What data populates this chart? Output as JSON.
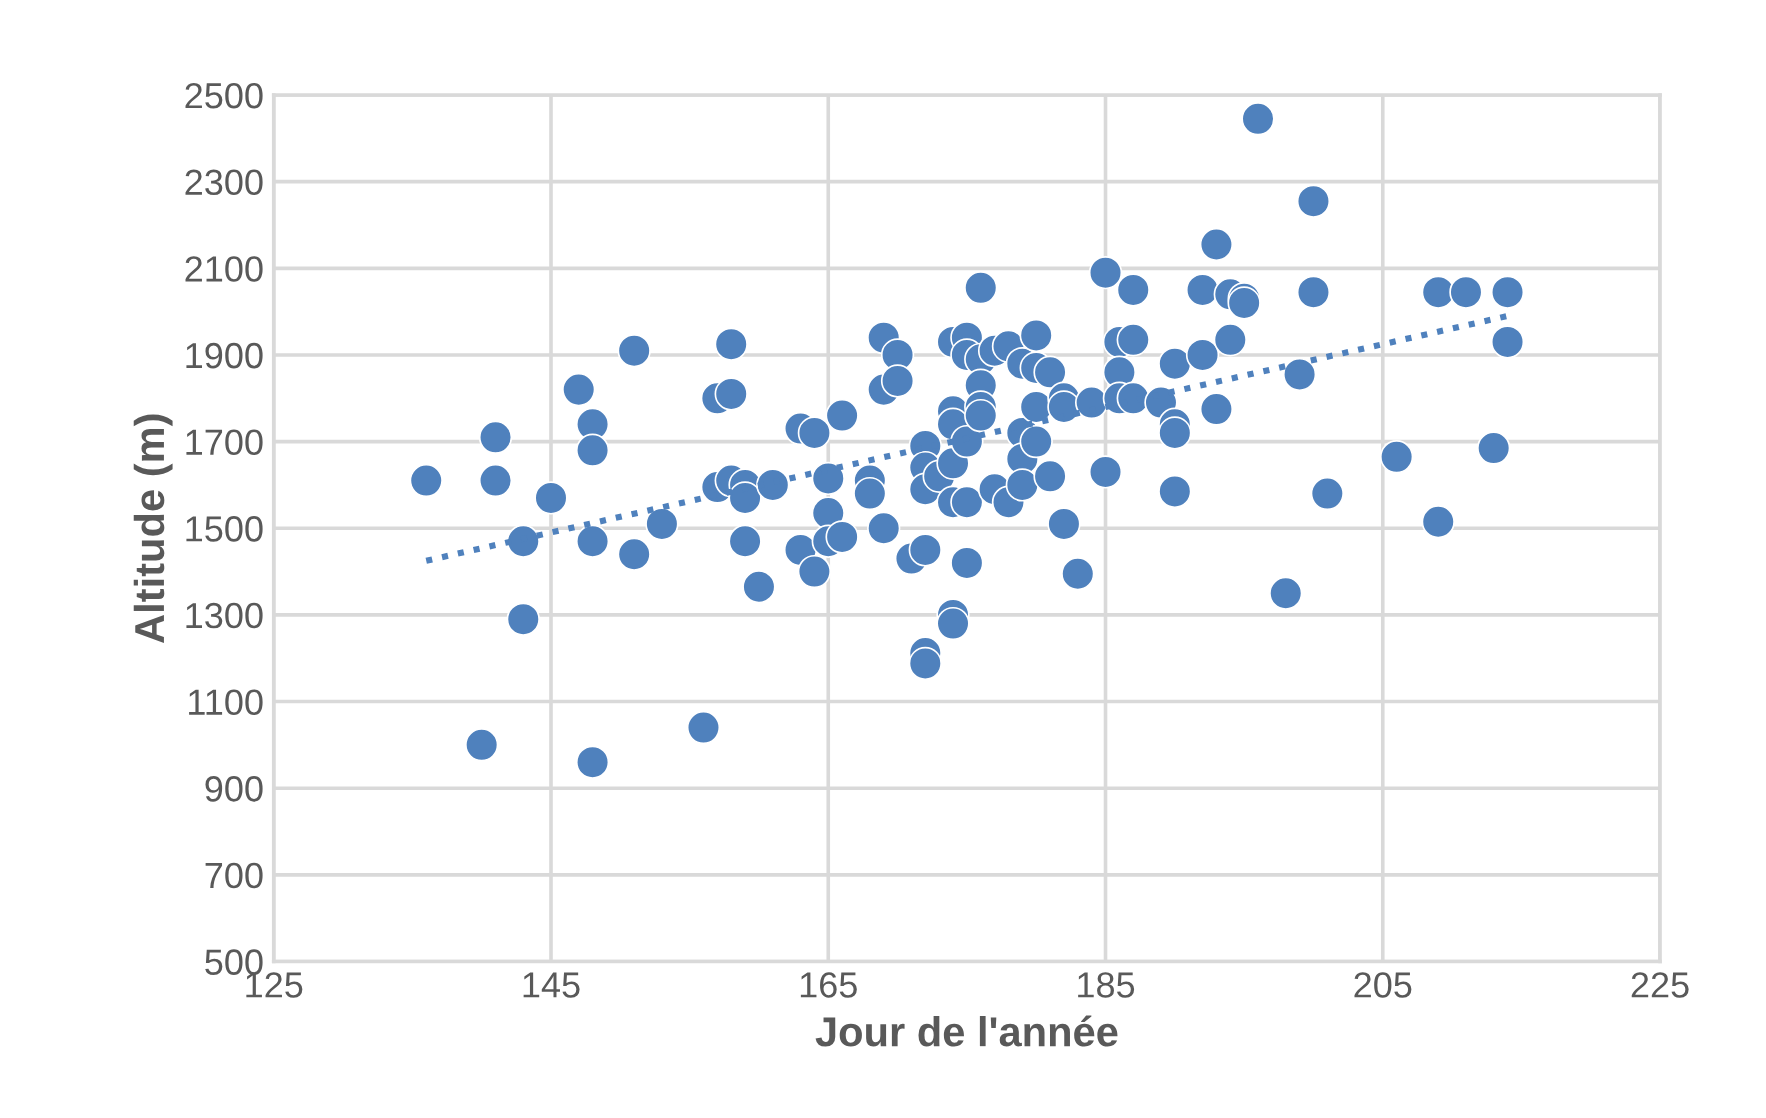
{
  "chart_data": {
    "type": "scatter",
    "xlabel": "Jour de l'année",
    "ylabel": "Altitude (m)",
    "xlim": [
      125,
      225
    ],
    "xticks": [
      125,
      145,
      165,
      185,
      205,
      225
    ],
    "ylim": [
      500,
      2500
    ],
    "yticks": [
      500,
      700,
      900,
      1100,
      1300,
      1500,
      1700,
      1900,
      2100,
      2300,
      2500
    ],
    "grid": true,
    "legend": false,
    "marker": "circle",
    "series": [
      {
        "color": "#4f81bd",
        "x": [
          136,
          140,
          141,
          141,
          143,
          143,
          145,
          147,
          148,
          148,
          148,
          148,
          151,
          151,
          153,
          156,
          157,
          157,
          158,
          158,
          158,
          159,
          159,
          159,
          160,
          161,
          163,
          163,
          164,
          164,
          165,
          165,
          165,
          166,
          166,
          168,
          168,
          169,
          169,
          169,
          170,
          170,
          171,
          172,
          172,
          172,
          172,
          172,
          172,
          173,
          174,
          174,
          174,
          174,
          174,
          174,
          174,
          175,
          175,
          175,
          175,
          175,
          176,
          176,
          176,
          176,
          176,
          177,
          177,
          178,
          178,
          179,
          179,
          179,
          179,
          180,
          180,
          180,
          180,
          181,
          181,
          182,
          182,
          182,
          183,
          184,
          185,
          185,
          186,
          186,
          186,
          187,
          187,
          187,
          189,
          190,
          190,
          190,
          190,
          192,
          192,
          193,
          193,
          194,
          194,
          195,
          195,
          196,
          198,
          199,
          200,
          200,
          201,
          206,
          209,
          209,
          211,
          213,
          214,
          214
        ],
        "values": [
          1610,
          1000,
          1710,
          1610,
          1470,
          1290,
          1570,
          1820,
          1740,
          1680,
          1470,
          960,
          1910,
          1440,
          1510,
          1040,
          1800,
          1595,
          1925,
          1810,
          1610,
          1600,
          1570,
          1470,
          1365,
          1600,
          1730,
          1450,
          1720,
          1400,
          1615,
          1535,
          1470,
          1760,
          1480,
          1610,
          1580,
          1940,
          1820,
          1500,
          1900,
          1840,
          1430,
          1690,
          1640,
          1590,
          1450,
          1212,
          1188,
          1620,
          1930,
          1770,
          1740,
          1650,
          1560,
          1300,
          1280,
          1940,
          1900,
          1700,
          1560,
          1420,
          2055,
          1890,
          1830,
          1780,
          1760,
          1910,
          1590,
          1920,
          1560,
          1880,
          1720,
          1660,
          1600,
          1945,
          1870,
          1780,
          1700,
          1860,
          1620,
          1800,
          1780,
          1510,
          1395,
          1790,
          2090,
          1630,
          1930,
          1860,
          1800,
          2050,
          1935,
          1800,
          1790,
          1880,
          1740,
          1720,
          1585,
          2050,
          1900,
          2155,
          1775,
          2040,
          1935,
          2030,
          2020,
          2445,
          1350,
          1855,
          2255,
          2045,
          1580,
          1665,
          2045,
          1515,
          2045,
          1685,
          2045,
          1930
        ]
      },
      {
        "type": "line",
        "color": "#4f81bd",
        "line_style": "dotted",
        "marker": "none",
        "x": [
          136,
          214
        ],
        "values": [
          1425,
          1990
        ]
      }
    ]
  }
}
